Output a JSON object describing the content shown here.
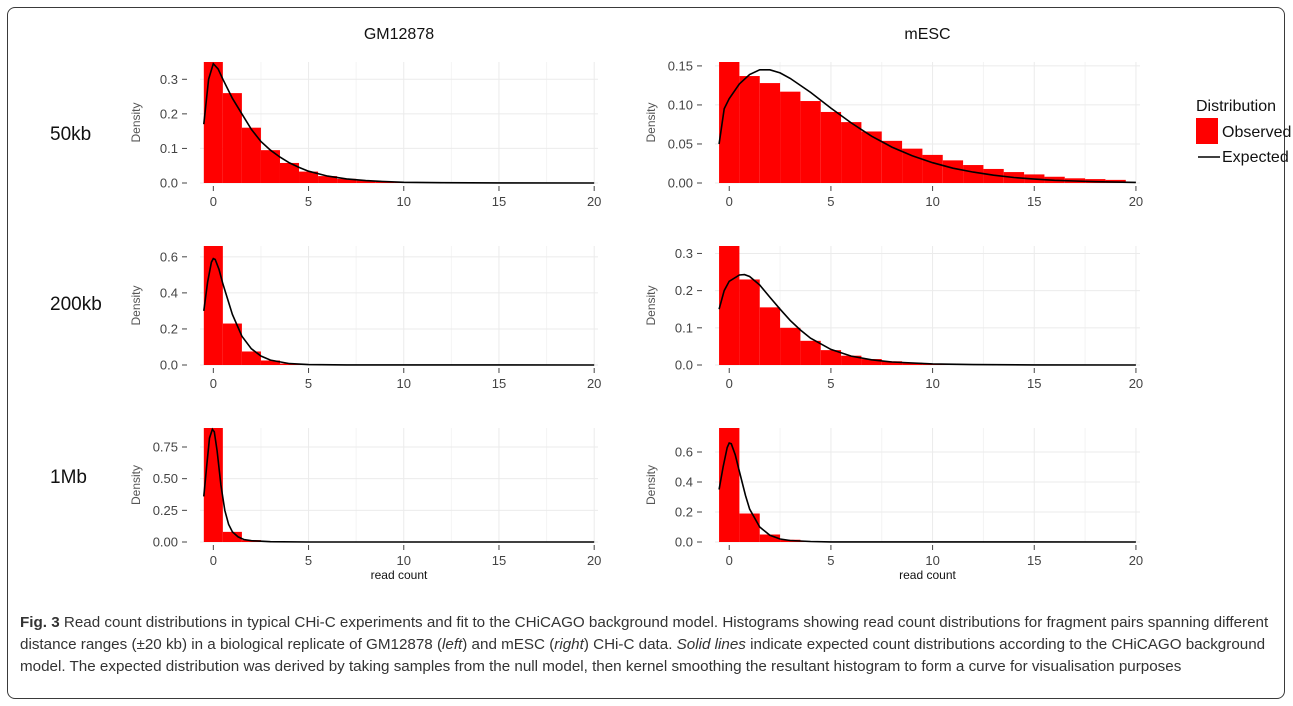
{
  "caption": {
    "fig_label": "Fig. 3",
    "p1": " Read count distributions in typical CHi-C experiments and fit to the CHiCAGO background model. Histograms showing read count distributions for fragment pairs spanning different distance ranges (±20 kb) in a biological replicate of GM12878 (",
    "left": "left",
    "p2": ") and mESC (",
    "right": "right",
    "p3": ") CHi-C data. ",
    "solid_lines": "Solid lines",
    "p4": " indicate expected count distributions according to the CHiCAGO background model. The expected distribution was derived by taking samples from the null model, then kernel smoothing the resultant histogram to form a curve for visualisation purposes"
  },
  "legend": {
    "title": "Distribution",
    "observed": "Observed",
    "expected": "Expected"
  },
  "colors": {
    "observed": "#ff0000",
    "expected": "#000000",
    "grid": "#ebebeb",
    "tick": "#444444"
  },
  "chart_data": {
    "type": "bar",
    "columns": [
      "GM12878",
      "mESC"
    ],
    "rows": [
      "50kb",
      "200kb",
      "1Mb"
    ],
    "xlabel": "read count",
    "ylabel": "Density",
    "xlim": [
      -0.7,
      20.2
    ],
    "xticks": [
      0,
      5,
      10,
      15,
      20
    ],
    "bin_edges": [
      -0.5,
      0.5,
      1.5,
      2.5,
      3.5,
      4.5,
      5.5,
      6.5,
      7.5,
      8.5,
      9.5,
      10.5,
      11.5,
      12.5,
      13.5,
      14.5,
      15.5,
      16.5,
      17.5,
      18.5,
      19.5
    ],
    "panels": [
      {
        "column": "GM12878",
        "row": "50kb",
        "ylim": [
          0,
          0.35
        ],
        "yticks": [
          0.0,
          0.1,
          0.2,
          0.3
        ],
        "ytick_labels": [
          "0.0",
          "0.1",
          "0.2",
          "0.3"
        ],
        "observed": [
          0.35,
          0.26,
          0.16,
          0.095,
          0.058,
          0.033,
          0.02,
          0.012,
          0.007,
          0.004,
          0.002,
          0.001,
          0.0005
        ],
        "expected": [
          [
            -0.5,
            0.17
          ],
          [
            -0.25,
            0.3
          ],
          [
            0,
            0.345
          ],
          [
            0.25,
            0.33
          ],
          [
            0.5,
            0.3
          ],
          [
            1,
            0.245
          ],
          [
            1.5,
            0.2
          ],
          [
            2,
            0.155
          ],
          [
            2.5,
            0.12
          ],
          [
            3,
            0.095
          ],
          [
            3.5,
            0.075
          ],
          [
            4,
            0.058
          ],
          [
            4.5,
            0.045
          ],
          [
            5,
            0.034
          ],
          [
            6,
            0.02
          ],
          [
            7,
            0.012
          ],
          [
            8,
            0.007
          ],
          [
            9,
            0.004
          ],
          [
            10,
            0.002
          ],
          [
            12,
            0.0008
          ],
          [
            15,
            0.0002
          ],
          [
            20,
            0.0
          ]
        ]
      },
      {
        "column": "mESC",
        "row": "50kb",
        "ylim": [
          0,
          0.155
        ],
        "yticks": [
          0.0,
          0.05,
          0.1,
          0.15
        ],
        "ytick_labels": [
          "0.00",
          "0.05",
          "0.10",
          "0.15"
        ],
        "observed": [
          0.155,
          0.137,
          0.128,
          0.117,
          0.105,
          0.091,
          0.078,
          0.066,
          0.054,
          0.044,
          0.036,
          0.029,
          0.023,
          0.018,
          0.014,
          0.011,
          0.008,
          0.006,
          0.005,
          0.004
        ],
        "expected": [
          [
            -0.5,
            0.05
          ],
          [
            -0.25,
            0.095
          ],
          [
            0,
            0.108
          ],
          [
            0.5,
            0.127
          ],
          [
            1,
            0.139
          ],
          [
            1.5,
            0.145
          ],
          [
            2,
            0.145
          ],
          [
            2.5,
            0.141
          ],
          [
            3,
            0.134
          ],
          [
            4,
            0.116
          ],
          [
            5,
            0.096
          ],
          [
            6,
            0.077
          ],
          [
            7,
            0.06
          ],
          [
            8,
            0.046
          ],
          [
            9,
            0.035
          ],
          [
            10,
            0.026
          ],
          [
            11,
            0.019
          ],
          [
            12,
            0.014
          ],
          [
            13,
            0.01
          ],
          [
            14,
            0.007
          ],
          [
            15,
            0.005
          ],
          [
            16,
            0.0035
          ],
          [
            17,
            0.0025
          ],
          [
            18,
            0.0017
          ],
          [
            19,
            0.0012
          ],
          [
            20,
            0.0008
          ]
        ]
      },
      {
        "column": "GM12878",
        "row": "200kb",
        "ylim": [
          0,
          0.66
        ],
        "yticks": [
          0.0,
          0.2,
          0.4,
          0.6
        ],
        "ytick_labels": [
          "0.0",
          "0.2",
          "0.4",
          "0.6"
        ],
        "observed": [
          0.66,
          0.23,
          0.075,
          0.025,
          0.008,
          0.003,
          0.001
        ],
        "expected": [
          [
            -0.5,
            0.3
          ],
          [
            -0.3,
            0.46
          ],
          [
            -0.1,
            0.57
          ],
          [
            0,
            0.59
          ],
          [
            0.1,
            0.585
          ],
          [
            0.3,
            0.53
          ],
          [
            0.5,
            0.45
          ],
          [
            1,
            0.28
          ],
          [
            1.5,
            0.16
          ],
          [
            2,
            0.09
          ],
          [
            2.5,
            0.05
          ],
          [
            3,
            0.027
          ],
          [
            4,
            0.008
          ],
          [
            5,
            0.002
          ],
          [
            7,
            0.0003
          ],
          [
            20,
            0.0
          ]
        ]
      },
      {
        "column": "mESC",
        "row": "200kb",
        "ylim": [
          0,
          0.32
        ],
        "yticks": [
          0.0,
          0.1,
          0.2,
          0.3
        ],
        "ytick_labels": [
          "0.0",
          "0.1",
          "0.2",
          "0.3"
        ],
        "observed": [
          0.32,
          0.23,
          0.155,
          0.1,
          0.065,
          0.04,
          0.025,
          0.016,
          0.01,
          0.006,
          0.004,
          0.002,
          0.0015,
          0.001
        ],
        "expected": [
          [
            -0.5,
            0.15
          ],
          [
            -0.25,
            0.2
          ],
          [
            0,
            0.225
          ],
          [
            0.5,
            0.242
          ],
          [
            0.75,
            0.243
          ],
          [
            1,
            0.238
          ],
          [
            1.5,
            0.215
          ],
          [
            2,
            0.182
          ],
          [
            2.5,
            0.15
          ],
          [
            3,
            0.12
          ],
          [
            3.5,
            0.094
          ],
          [
            4,
            0.072
          ],
          [
            5,
            0.042
          ],
          [
            6,
            0.024
          ],
          [
            7,
            0.014
          ],
          [
            8,
            0.008
          ],
          [
            10,
            0.003
          ],
          [
            12,
            0.001
          ],
          [
            15,
            0.0003
          ],
          [
            20,
            0.0
          ]
        ]
      },
      {
        "column": "GM12878",
        "row": "1Mb",
        "ylim": [
          0,
          0.9
        ],
        "yticks": [
          0.0,
          0.25,
          0.5,
          0.75
        ],
        "ytick_labels": [
          "0.00",
          "0.25",
          "0.50",
          "0.75"
        ],
        "observed": [
          0.9,
          0.08,
          0.015,
          0.004,
          0.001
        ],
        "expected": [
          [
            -0.5,
            0.36
          ],
          [
            -0.35,
            0.6
          ],
          [
            -0.2,
            0.82
          ],
          [
            -0.05,
            0.89
          ],
          [
            0.05,
            0.87
          ],
          [
            0.2,
            0.72
          ],
          [
            0.4,
            0.45
          ],
          [
            0.6,
            0.25
          ],
          [
            0.8,
            0.14
          ],
          [
            1,
            0.08
          ],
          [
            1.3,
            0.04
          ],
          [
            1.6,
            0.02
          ],
          [
            2,
            0.01
          ],
          [
            3,
            0.002
          ],
          [
            5,
            0.0
          ],
          [
            20,
            0.0
          ]
        ]
      },
      {
        "column": "mESC",
        "row": "1Mb",
        "ylim": [
          0,
          0.76
        ],
        "yticks": [
          0.0,
          0.2,
          0.4,
          0.6
        ],
        "ytick_labels": [
          "0.0",
          "0.2",
          "0.4",
          "0.6"
        ],
        "observed": [
          0.76,
          0.19,
          0.05,
          0.015,
          0.005,
          0.002
        ],
        "expected": [
          [
            -0.5,
            0.35
          ],
          [
            -0.3,
            0.5
          ],
          [
            -0.1,
            0.63
          ],
          [
            0,
            0.66
          ],
          [
            0.1,
            0.655
          ],
          [
            0.3,
            0.58
          ],
          [
            0.5,
            0.47
          ],
          [
            0.8,
            0.31
          ],
          [
            1,
            0.22
          ],
          [
            1.5,
            0.1
          ],
          [
            2,
            0.045
          ],
          [
            2.5,
            0.02
          ],
          [
            3,
            0.01
          ],
          [
            4,
            0.003
          ],
          [
            5,
            0.001
          ],
          [
            20,
            0.0
          ]
        ]
      }
    ]
  }
}
